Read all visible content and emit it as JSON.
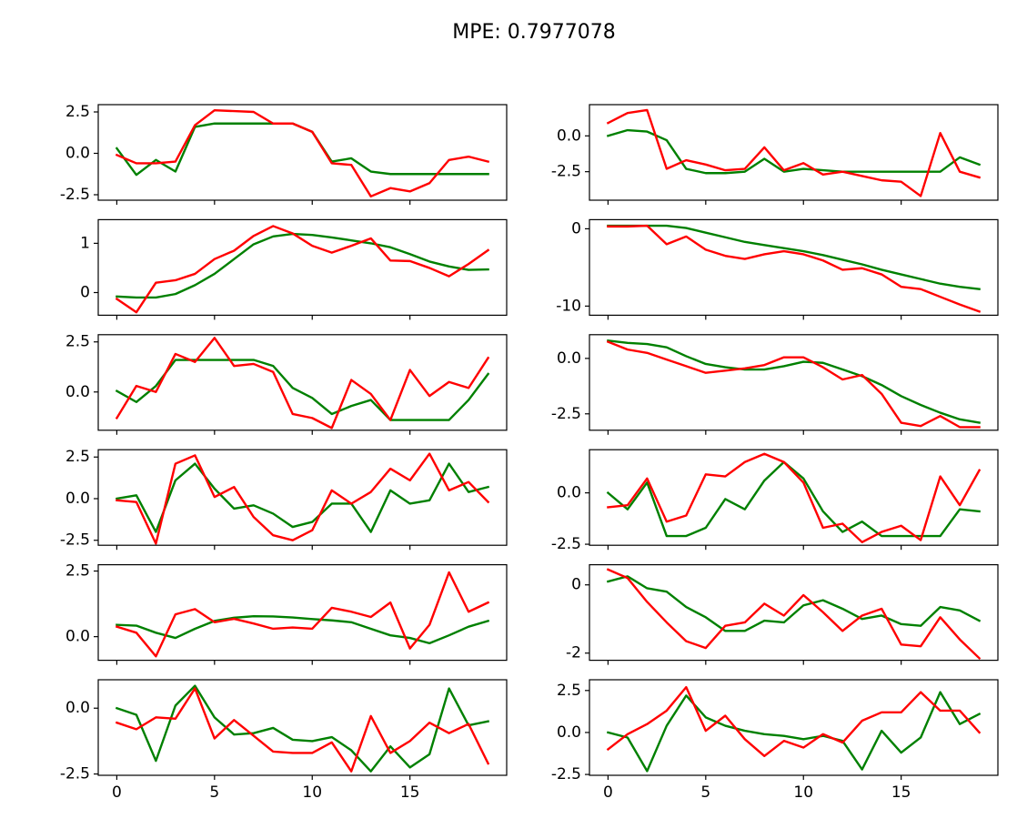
{
  "title": "MPE: 0.7977078",
  "chart_data": [
    {
      "type": "line",
      "x": [
        0,
        1,
        2,
        3,
        4,
        5,
        6,
        7,
        8,
        9,
        10,
        11,
        12,
        13,
        14,
        15,
        16,
        17,
        18,
        19
      ],
      "xlim": [
        -0.95,
        19.95
      ],
      "xticks": [
        0,
        5,
        10,
        15
      ],
      "ylim": [
        -2.83,
        2.94
      ],
      "yticks": [
        2.5,
        {
          "value": 0,
          "label": "0.0"
        },
        -2.5
      ],
      "series": [
        {
          "color": "green",
          "values": [
            0.3,
            -1.3,
            -0.4,
            -1.1,
            1.6,
            1.8,
            1.8,
            1.8,
            1.8,
            1.8,
            1.3,
            -0.5,
            -0.3,
            -1.1,
            -1.25,
            -1.25,
            -1.25,
            -1.25,
            -1.25,
            -1.25
          ]
        },
        {
          "color": "red",
          "values": [
            -0.1,
            -0.6,
            -0.6,
            -0.5,
            1.7,
            2.6,
            2.55,
            2.5,
            1.8,
            1.8,
            1.3,
            -0.6,
            -0.7,
            -2.6,
            -2.1,
            -2.3,
            -1.8,
            -0.4,
            -0.2,
            -0.5
          ]
        }
      ]
    },
    {
      "type": "line",
      "x": [
        0,
        1,
        2,
        3,
        4,
        5,
        6,
        7,
        8,
        9,
        10,
        11,
        12,
        13,
        14,
        15,
        16,
        17,
        18,
        19
      ],
      "xlim": [
        -0.95,
        19.95
      ],
      "xticks": [
        0,
        5,
        10,
        15
      ],
      "ylim": [
        -4.49,
        2.18
      ],
      "yticks": [
        {
          "value": 0,
          "label": "0.0"
        },
        -2.5
      ],
      "series": [
        {
          "color": "green",
          "values": [
            0.0,
            0.4,
            0.3,
            -0.3,
            -2.3,
            -2.6,
            -2.6,
            -2.5,
            -1.6,
            -2.5,
            -2.3,
            -2.4,
            -2.5,
            -2.5,
            -2.5,
            -2.5,
            -2.5,
            -2.5,
            -1.5,
            -2.0
          ]
        },
        {
          "color": "red",
          "values": [
            0.9,
            1.6,
            1.8,
            -2.3,
            -1.7,
            -2.0,
            -2.4,
            -2.3,
            -0.8,
            -2.4,
            -1.9,
            -2.7,
            -2.5,
            -2.8,
            -3.1,
            -3.2,
            -4.2,
            0.2,
            -2.5,
            -2.9
          ]
        }
      ]
    },
    {
      "type": "line",
      "x": [
        0,
        1,
        2,
        3,
        4,
        5,
        6,
        7,
        8,
        9,
        10,
        11,
        12,
        13,
        14,
        15,
        16,
        17,
        18,
        19
      ],
      "xlim": [
        -0.95,
        19.95
      ],
      "xticks": [
        0,
        5,
        10,
        15
      ],
      "ylim": [
        -0.46,
        1.48
      ],
      "yticks": [
        1,
        0
      ],
      "series": [
        {
          "color": "green",
          "values": [
            -0.08,
            -0.1,
            -0.1,
            -0.03,
            0.15,
            0.38,
            0.68,
            0.98,
            1.14,
            1.19,
            1.17,
            1.12,
            1.06,
            1.0,
            0.92,
            0.78,
            0.63,
            0.53,
            0.46,
            0.47
          ]
        },
        {
          "color": "red",
          "values": [
            -0.13,
            -0.4,
            0.2,
            0.25,
            0.38,
            0.68,
            0.85,
            1.15,
            1.35,
            1.2,
            0.95,
            0.81,
            0.95,
            1.1,
            0.65,
            0.64,
            0.5,
            0.33,
            0.58,
            0.86
          ]
        }
      ]
    },
    {
      "type": "line",
      "x": [
        0,
        1,
        2,
        3,
        4,
        5,
        6,
        7,
        8,
        9,
        10,
        11,
        12,
        13,
        14,
        15,
        16,
        17,
        18,
        19
      ],
      "xlim": [
        -0.95,
        19.95
      ],
      "xticks": [
        0,
        5,
        10,
        15
      ],
      "ylim": [
        -11.18,
        1.18
      ],
      "yticks": [
        0,
        -10
      ],
      "series": [
        {
          "color": "green",
          "values": [
            0.4,
            0.4,
            0.4,
            0.4,
            0.1,
            -0.5,
            -1.1,
            -1.7,
            -2.1,
            -2.5,
            -2.9,
            -3.4,
            -4.0,
            -4.6,
            -5.3,
            -5.9,
            -6.5,
            -7.1,
            -7.5,
            -7.8
          ]
        },
        {
          "color": "red",
          "values": [
            0.3,
            0.3,
            0.4,
            -2.0,
            -1.0,
            -2.7,
            -3.5,
            -3.9,
            -3.3,
            -2.9,
            -3.3,
            -4.1,
            -5.3,
            -5.1,
            -5.9,
            -7.5,
            -7.8,
            -8.8,
            -9.8,
            -10.7
          ]
        }
      ]
    },
    {
      "type": "line",
      "x": [
        0,
        1,
        2,
        3,
        4,
        5,
        6,
        7,
        8,
        9,
        10,
        11,
        12,
        13,
        14,
        15,
        16,
        17,
        18,
        19
      ],
      "xlim": [
        -0.95,
        19.95
      ],
      "xticks": [
        0,
        5,
        10,
        15
      ],
      "ylim": [
        -1.91,
        2.86
      ],
      "yticks": [
        2.5,
        {
          "value": 0,
          "label": "0.0"
        }
      ],
      "series": [
        {
          "color": "green",
          "values": [
            0.05,
            -0.5,
            0.3,
            1.6,
            1.6,
            1.6,
            1.6,
            1.6,
            1.3,
            0.2,
            -0.3,
            -1.1,
            -0.7,
            -0.4,
            -1.4,
            -1.4,
            -1.4,
            -1.4,
            -0.4,
            0.9
          ]
        },
        {
          "color": "red",
          "values": [
            -1.3,
            0.3,
            0.0,
            1.9,
            1.5,
            2.7,
            1.3,
            1.4,
            1.0,
            -1.1,
            -1.3,
            -1.8,
            0.6,
            -0.1,
            -1.4,
            1.1,
            -0.2,
            0.5,
            0.2,
            1.7
          ]
        }
      ]
    },
    {
      "type": "line",
      "x": [
        0,
        1,
        2,
        3,
        4,
        5,
        6,
        7,
        8,
        9,
        10,
        11,
        12,
        13,
        14,
        15,
        16,
        17,
        18,
        19
      ],
      "xlim": [
        -0.95,
        19.95
      ],
      "xticks": [
        0,
        5,
        10,
        15
      ],
      "ylim": [
        -3.24,
        1.07
      ],
      "yticks": [
        {
          "value": 0,
          "label": "0.0"
        },
        -2.5
      ],
      "series": [
        {
          "color": "green",
          "values": [
            0.8,
            0.7,
            0.65,
            0.5,
            0.1,
            -0.25,
            -0.4,
            -0.5,
            -0.5,
            -0.35,
            -0.15,
            -0.2,
            -0.5,
            -0.8,
            -1.2,
            -1.7,
            -2.1,
            -2.45,
            -2.75,
            -2.9
          ]
        },
        {
          "color": "red",
          "values": [
            0.75,
            0.4,
            0.25,
            -0.05,
            -0.35,
            -0.65,
            -0.55,
            -0.45,
            -0.3,
            0.05,
            0.05,
            -0.4,
            -0.95,
            -0.75,
            -1.6,
            -2.9,
            -3.05,
            -2.6,
            -3.1,
            -3.1
          ]
        }
      ]
    },
    {
      "type": "line",
      "x": [
        0,
        1,
        2,
        3,
        4,
        5,
        6,
        7,
        8,
        9,
        10,
        11,
        12,
        13,
        14,
        15,
        16,
        17,
        18,
        19
      ],
      "xlim": [
        -0.95,
        19.95
      ],
      "xticks": [
        0,
        5,
        10,
        15
      ],
      "ylim": [
        -2.8,
        2.94
      ],
      "yticks": [
        2.5,
        {
          "value": 0,
          "label": "0.0"
        },
        -2.5
      ],
      "series": [
        {
          "color": "green",
          "values": [
            0.0,
            0.2,
            -2.0,
            1.1,
            2.1,
            0.6,
            -0.6,
            -0.4,
            -0.9,
            -1.7,
            -1.4,
            -0.3,
            -0.3,
            -2.0,
            0.5,
            -0.3,
            -0.1,
            2.1,
            0.4,
            0.7
          ]
        },
        {
          "color": "red",
          "values": [
            -0.1,
            -0.2,
            -2.7,
            2.1,
            2.6,
            0.1,
            0.7,
            -1.1,
            -2.2,
            -2.5,
            -1.9,
            0.5,
            -0.3,
            0.4,
            1.8,
            1.1,
            2.7,
            0.5,
            1.0,
            -0.2
          ]
        }
      ]
    },
    {
      "type": "line",
      "x": [
        0,
        1,
        2,
        3,
        4,
        5,
        6,
        7,
        8,
        9,
        10,
        11,
        12,
        13,
        14,
        15,
        16,
        17,
        18,
        19
      ],
      "xlim": [
        -0.95,
        19.95
      ],
      "xticks": [
        0,
        5,
        10,
        15
      ],
      "ylim": [
        -2.55,
        2.1
      ],
      "yticks": [
        {
          "value": 0,
          "label": "0.0"
        },
        -2.5
      ],
      "series": [
        {
          "color": "green",
          "values": [
            0.0,
            -0.8,
            0.5,
            -2.1,
            -2.1,
            -1.7,
            -0.3,
            -0.8,
            0.6,
            1.5,
            0.7,
            -0.9,
            -1.9,
            -1.4,
            -2.1,
            -2.1,
            -2.1,
            -2.1,
            -0.8,
            -0.9
          ]
        },
        {
          "color": "red",
          "values": [
            -0.7,
            -0.6,
            0.7,
            -1.4,
            -1.1,
            0.9,
            0.8,
            1.5,
            1.9,
            1.5,
            0.5,
            -1.7,
            -1.5,
            -2.4,
            -1.9,
            -1.6,
            -2.3,
            0.8,
            -0.6,
            1.1
          ]
        }
      ]
    },
    {
      "type": "line",
      "x": [
        0,
        1,
        2,
        3,
        4,
        5,
        6,
        7,
        8,
        9,
        10,
        11,
        12,
        13,
        14,
        15,
        16,
        17,
        18,
        19
      ],
      "xlim": [
        -0.95,
        19.95
      ],
      "xticks": [
        0,
        5,
        10,
        15
      ],
      "ylim": [
        -0.9,
        2.74
      ],
      "yticks": [
        2.5,
        {
          "value": 0,
          "label": "0.0"
        }
      ],
      "series": [
        {
          "color": "green",
          "values": [
            0.45,
            0.42,
            0.15,
            -0.05,
            0.3,
            0.6,
            0.72,
            0.78,
            0.77,
            0.73,
            0.67,
            0.62,
            0.55,
            0.3,
            0.05,
            -0.05,
            -0.25,
            0.05,
            0.38,
            0.6
          ]
        },
        {
          "color": "red",
          "values": [
            0.38,
            0.15,
            -0.75,
            0.85,
            1.05,
            0.55,
            0.68,
            0.5,
            0.3,
            0.35,
            0.3,
            1.1,
            0.95,
            0.75,
            1.3,
            -0.45,
            0.45,
            2.45,
            0.95,
            1.3
          ]
        }
      ]
    },
    {
      "type": "line",
      "x": [
        0,
        1,
        2,
        3,
        4,
        5,
        6,
        7,
        8,
        9,
        10,
        11,
        12,
        13,
        14,
        15,
        16,
        17,
        18,
        19
      ],
      "xlim": [
        -0.95,
        19.95
      ],
      "xticks": [
        0,
        5,
        10,
        15
      ],
      "ylim": [
        -2.21,
        0.59
      ],
      "yticks": [
        0,
        -2
      ],
      "series": [
        {
          "color": "green",
          "values": [
            0.1,
            0.25,
            -0.1,
            -0.2,
            -0.65,
            -0.95,
            -1.35,
            -1.35,
            -1.05,
            -1.1,
            -0.6,
            -0.45,
            -0.7,
            -1.0,
            -0.9,
            -1.15,
            -1.2,
            -0.65,
            -0.75,
            -1.05
          ]
        },
        {
          "color": "red",
          "values": [
            0.45,
            0.2,
            -0.5,
            -1.1,
            -1.65,
            -1.85,
            -1.2,
            -1.1,
            -0.55,
            -0.9,
            -0.3,
            -0.8,
            -1.35,
            -0.9,
            -0.7,
            -1.75,
            -1.8,
            -0.95,
            -1.6,
            -2.15
          ]
        }
      ]
    },
    {
      "type": "line",
      "x": [
        0,
        1,
        2,
        3,
        4,
        5,
        6,
        7,
        8,
        9,
        10,
        11,
        12,
        13,
        14,
        15,
        16,
        17,
        18,
        19
      ],
      "xlim": [
        -0.95,
        19.95
      ],
      "xticks": [
        0,
        5,
        10,
        15
      ],
      "ylim": [
        -2.55,
        1.08
      ],
      "yticks": [
        {
          "value": 0,
          "label": "0.0"
        },
        -2.5
      ],
      "series": [
        {
          "color": "green",
          "values": [
            0.0,
            -0.25,
            -2.0,
            0.1,
            0.85,
            -0.35,
            -1.0,
            -0.95,
            -0.75,
            -1.2,
            -1.25,
            -1.1,
            -1.6,
            -2.4,
            -1.45,
            -2.25,
            -1.75,
            0.75,
            -0.65,
            -0.5
          ]
        },
        {
          "color": "red",
          "values": [
            -0.55,
            -0.8,
            -0.35,
            -0.4,
            0.75,
            -1.15,
            -0.45,
            -1.05,
            -1.65,
            -1.7,
            -1.7,
            -1.3,
            -2.4,
            -0.3,
            -1.7,
            -1.25,
            -0.55,
            -0.95,
            -0.6,
            -2.1
          ]
        }
      ]
    },
    {
      "type": "line",
      "x": [
        0,
        1,
        2,
        3,
        4,
        5,
        6,
        7,
        8,
        9,
        10,
        11,
        12,
        13,
        14,
        15,
        16,
        17,
        18,
        19
      ],
      "xlim": [
        -0.95,
        19.95
      ],
      "xticks": [
        0,
        5,
        10,
        15
      ],
      "ylim": [
        -2.55,
        3.14
      ],
      "yticks": [
        2.5,
        {
          "value": 0,
          "label": "0.0"
        },
        -2.5
      ],
      "series": [
        {
          "color": "green",
          "values": [
            0.0,
            -0.3,
            -2.3,
            0.4,
            2.2,
            0.9,
            0.4,
            0.1,
            -0.1,
            -0.2,
            -0.4,
            -0.2,
            -0.5,
            -2.2,
            0.1,
            -1.2,
            -0.3,
            2.4,
            0.5,
            1.1
          ]
        },
        {
          "color": "red",
          "values": [
            -1.0,
            -0.1,
            0.5,
            1.3,
            2.7,
            0.1,
            1.0,
            -0.4,
            -1.4,
            -0.5,
            -0.9,
            -0.1,
            -0.6,
            0.7,
            1.2,
            1.2,
            2.4,
            1.3,
            1.3,
            0.0
          ]
        }
      ]
    }
  ]
}
